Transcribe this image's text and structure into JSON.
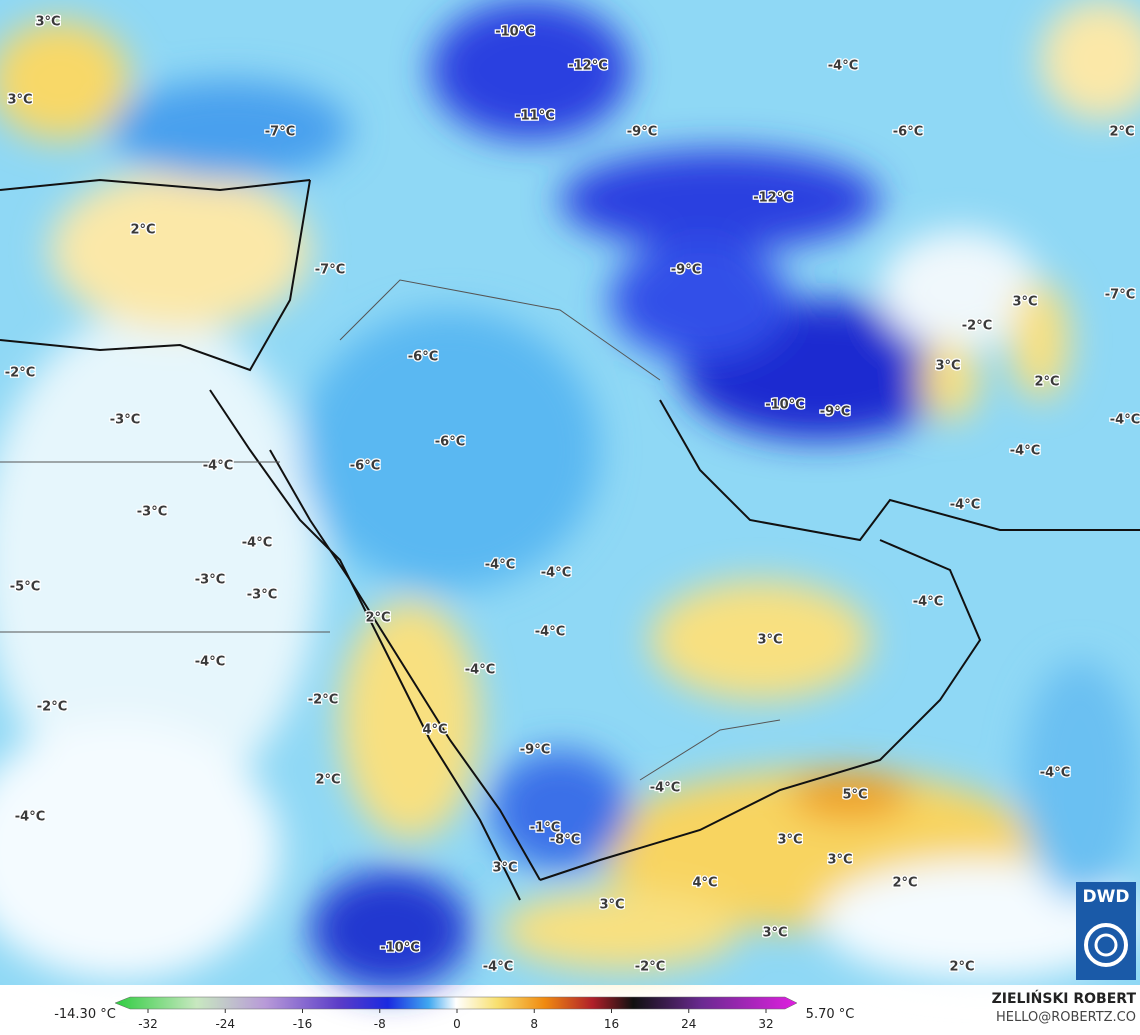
{
  "map": {
    "labels": [
      "3°C",
      "3°C",
      "-10°C",
      "-12°C",
      "-4°C",
      "-11°C",
      "-7°C",
      "-9°C",
      "-6°C",
      "2°C",
      "2°C",
      "-12°C",
      "-7°C",
      "-9°C",
      "3°C",
      "-7°C",
      "-2°C",
      "-6°C",
      "3°C",
      "2°C",
      "-2°C",
      "-3°C",
      "-10°C",
      "-9°C",
      "-4°C",
      "-6°C",
      "-4°C",
      "-6°C",
      "-4°C",
      "-3°C",
      "-4°C",
      "-4°C",
      "-4°C",
      "-4°C",
      "-3°C",
      "-5°C",
      "-3°C",
      "-4°C",
      "2°C",
      "3°C",
      "-4°C",
      "-4°C",
      "-4°C",
      "-2°C",
      "-2°C",
      "4°C",
      "-9°C",
      "-4°C",
      "-4°C",
      "2°C",
      "5°C",
      "-4°C",
      "3°C",
      "-1°C",
      "-8°C",
      "3°C",
      "3°C",
      "4°C",
      "2°C",
      "3°C",
      "3°C",
      "-10°C",
      "-4°C",
      "-2°C",
      "2°C"
    ]
  },
  "colorbar": {
    "ticks": [
      -32,
      -24,
      -16,
      -8,
      0,
      8,
      16,
      24,
      32
    ],
    "min_label": "-14.30 °C",
    "max_label": "5.70 °C"
  },
  "credit": {
    "author": "ZIELIŃSKI ROBERT",
    "email": "HELLO@ROBERTZ.CO"
  },
  "logo": "DWD"
}
